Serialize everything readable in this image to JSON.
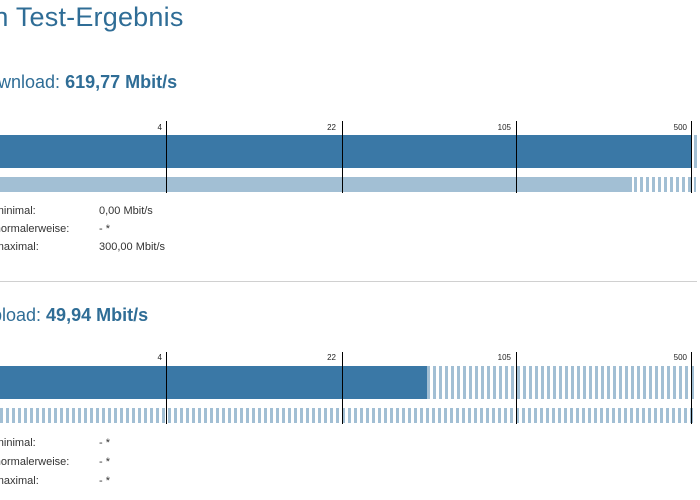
{
  "page": {
    "title": "ein Test-Ergebnis"
  },
  "download": {
    "label": "ownload: ",
    "speed": "619,77 Mbit/s",
    "scale_ticks": [
      "4",
      "22",
      "105",
      "500"
    ],
    "measured_fraction": 0.995,
    "guaranteed_fraction": 0.91,
    "rows": [
      {
        "label": "L minimal:",
        "value": "0,00 Mbit/s"
      },
      {
        "label": "L normalerweise:",
        "value": "- *"
      },
      {
        "label": "L maximal:",
        "value": "300,00 Mbit/s"
      }
    ]
  },
  "upload": {
    "label": "pload: ",
    "speed": "49,94 Mbit/s",
    "scale_ticks": [
      "4",
      "22",
      "105",
      "500"
    ],
    "measured_fraction": 0.615,
    "rows": [
      {
        "label": "L minimal:",
        "value": "- *"
      },
      {
        "label": "L normalerweise:",
        "value": "- *"
      },
      {
        "label": "L maximal:",
        "value": "- *"
      }
    ]
  },
  "colors": {
    "accent": "#2f6d96",
    "bar_main": "#3a78a6",
    "bar_sub": "#a2bfd4"
  }
}
